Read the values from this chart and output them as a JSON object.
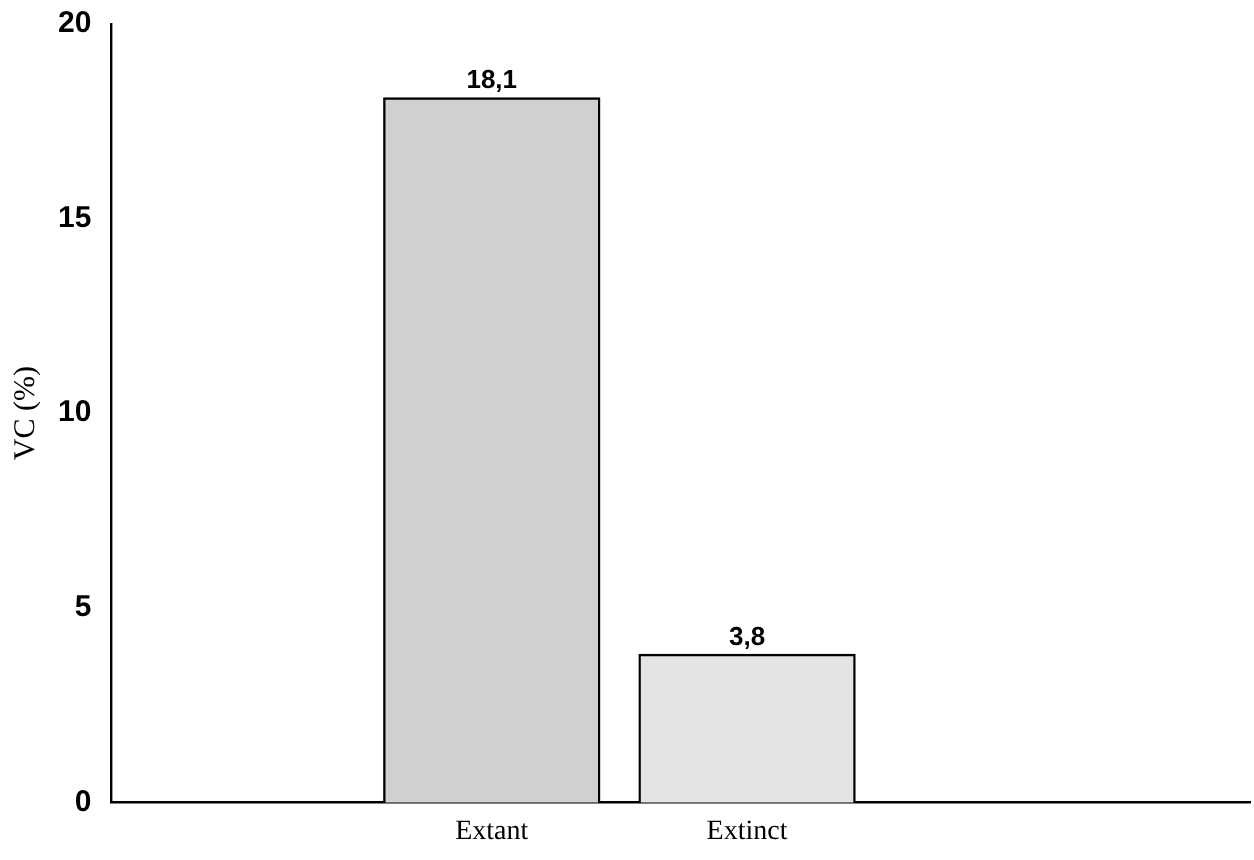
{
  "chart_data": {
    "type": "bar",
    "ylabel": "VC (%)",
    "categories": [
      "Extant",
      "Extinct"
    ],
    "values": [
      18.1,
      3.8
    ],
    "colors": [
      "#d0d0d0",
      "#e4e4e4"
    ],
    "value_labels": [
      "18,1",
      "3,8"
    ],
    "ylim": [
      0,
      20
    ],
    "yticks": [
      0,
      5,
      10,
      15,
      20
    ],
    "grid": false,
    "legend": false
  }
}
